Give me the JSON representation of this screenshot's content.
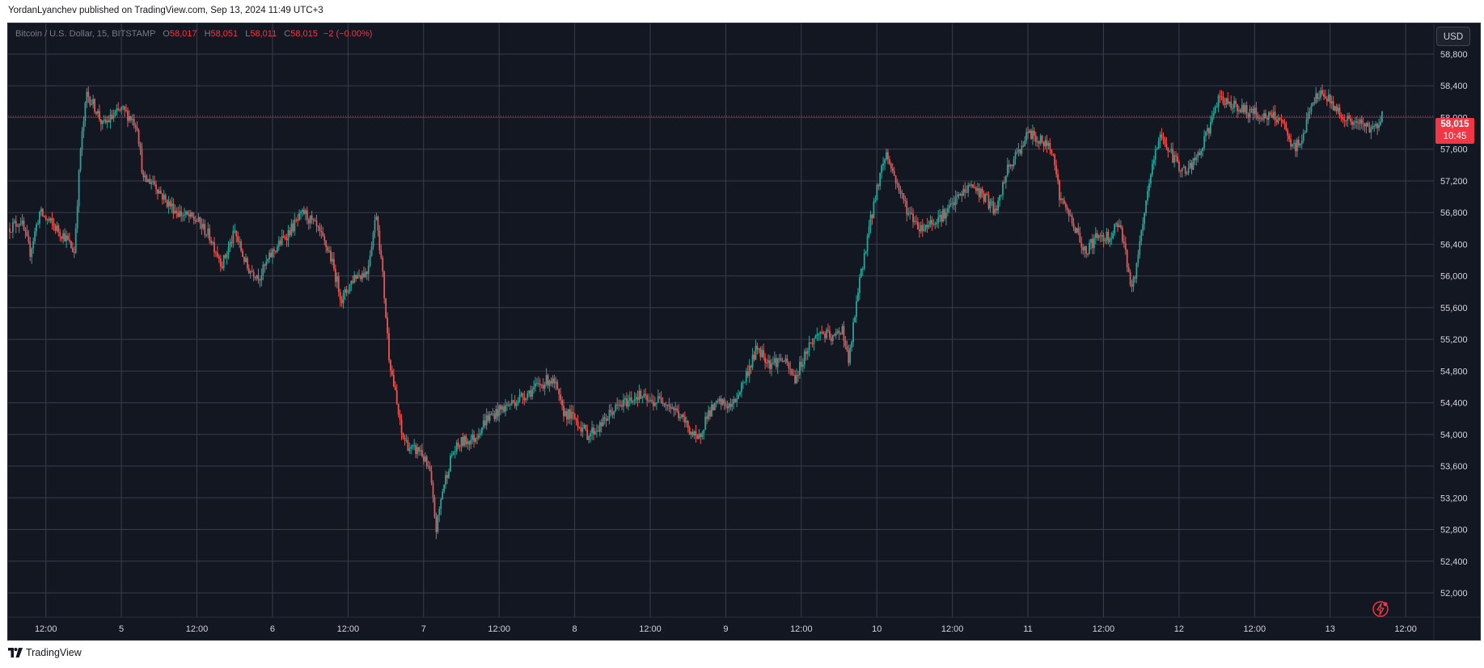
{
  "header": {
    "text": "YordanLyanchev published on TradingView.com, Sep 13, 2024 11:49 UTC+3"
  },
  "legend": {
    "symbol": "Bitcoin / U.S. Dollar, 15, BITSTAMP",
    "o_label": "O",
    "o_value": "58,017",
    "h_label": "H",
    "h_value": "58,051",
    "l_label": "L",
    "l_value": "58,011",
    "c_label": "C",
    "c_value": "58,015",
    "change": "−2 (−0.00%)"
  },
  "currency_button": "USD",
  "last_price": {
    "price": "58,015",
    "countdown": "10:45",
    "value": 58015
  },
  "footer": {
    "brand": "TradingView"
  },
  "colors": {
    "background": "#131722",
    "grid": "#3a3e4a",
    "up": "#26a69a",
    "down": "#ef5350",
    "price_line": "#f23645",
    "text": "#d1d4dc"
  },
  "chart_data": {
    "type": "candlestick",
    "ylim": [
      51900,
      59100
    ],
    "y_ticks": [
      52000,
      52400,
      52800,
      53200,
      53600,
      54000,
      54400,
      54800,
      55200,
      55600,
      56000,
      56400,
      56800,
      57200,
      57600,
      58000,
      58400,
      58800
    ],
    "y_tick_labels": [
      "52,000",
      "52,400",
      "52,800",
      "53,200",
      "53,600",
      "54,000",
      "54,400",
      "54,800",
      "55,200",
      "55,600",
      "56,000",
      "56,400",
      "56,800",
      "57,200",
      "57,600",
      "58,000",
      "58,400",
      "58,800"
    ],
    "x_range_hours": [
      0,
      218
    ],
    "x_ticks": [
      {
        "hour": 6,
        "label": "12:00"
      },
      {
        "hour": 18,
        "label": "5"
      },
      {
        "hour": 30,
        "label": "12:00"
      },
      {
        "hour": 42,
        "label": "6"
      },
      {
        "hour": 54,
        "label": "12:00"
      },
      {
        "hour": 66,
        "label": "7"
      },
      {
        "hour": 78,
        "label": "12:00"
      },
      {
        "hour": 90,
        "label": "8"
      },
      {
        "hour": 102,
        "label": "12:00"
      },
      {
        "hour": 114,
        "label": "9"
      },
      {
        "hour": 126,
        "label": "12:00"
      },
      {
        "hour": 138,
        "label": "10"
      },
      {
        "hour": 150,
        "label": "12:00"
      },
      {
        "hour": 162,
        "label": "11"
      },
      {
        "hour": 174,
        "label": "12:00"
      },
      {
        "hour": 186,
        "label": "12"
      },
      {
        "hour": 198,
        "label": "12:00"
      },
      {
        "hour": 210,
        "label": "13"
      },
      {
        "hour": 222,
        "label": "12:00"
      }
    ],
    "interval_minutes": 15,
    "path": [
      [
        0,
        56600
      ],
      [
        2,
        56700
      ],
      [
        3.5,
        56300
      ],
      [
        5,
        56800
      ],
      [
        9,
        56500
      ],
      [
        10.5,
        56300
      ],
      [
        11.5,
        57600
      ],
      [
        12.5,
        58300
      ],
      [
        14,
        58100
      ],
      [
        15,
        57900
      ],
      [
        18,
        58100
      ],
      [
        19.5,
        58000
      ],
      [
        20.5,
        57900
      ],
      [
        21.5,
        57200
      ],
      [
        23,
        57200
      ],
      [
        25,
        56950
      ],
      [
        27,
        56800
      ],
      [
        30,
        56700
      ],
      [
        32,
        56500
      ],
      [
        34,
        56150
      ],
      [
        36,
        56550
      ],
      [
        38,
        56100
      ],
      [
        40,
        56000
      ],
      [
        42,
        56300
      ],
      [
        44,
        56500
      ],
      [
        47,
        56800
      ],
      [
        49,
        56600
      ],
      [
        51,
        56300
      ],
      [
        53,
        55700
      ],
      [
        55,
        56000
      ],
      [
        57,
        56050
      ],
      [
        58.5,
        56800
      ],
      [
        59.5,
        56000
      ],
      [
        60.5,
        55000
      ],
      [
        61.5,
        54500
      ],
      [
        62.5,
        54000
      ],
      [
        64,
        53800
      ],
      [
        65.5,
        53800
      ],
      [
        67,
        53500
      ],
      [
        68,
        52800
      ],
      [
        69,
        53300
      ],
      [
        70.5,
        53750
      ],
      [
        72,
        53900
      ],
      [
        74,
        53950
      ],
      [
        76,
        54200
      ],
      [
        78,
        54300
      ],
      [
        80,
        54400
      ],
      [
        82,
        54500
      ],
      [
        84,
        54600
      ],
      [
        86,
        54700
      ],
      [
        87,
        54600
      ],
      [
        88,
        54300
      ],
      [
        90,
        54200
      ],
      [
        92,
        54000
      ],
      [
        94,
        54100
      ],
      [
        96,
        54300
      ],
      [
        98,
        54400
      ],
      [
        100,
        54500
      ],
      [
        102,
        54400
      ],
      [
        104,
        54450
      ],
      [
        106,
        54300
      ],
      [
        108,
        54100
      ],
      [
        109.5,
        53900
      ],
      [
        111,
        54250
      ],
      [
        113,
        54400
      ],
      [
        115,
        54350
      ],
      [
        117,
        54700
      ],
      [
        119,
        55100
      ],
      [
        121,
        54900
      ],
      [
        123,
        54950
      ],
      [
        125,
        54700
      ],
      [
        127,
        55100
      ],
      [
        129,
        55300
      ],
      [
        131,
        55200
      ],
      [
        132.5,
        55350
      ],
      [
        133.5,
        54900
      ],
      [
        135,
        55800
      ],
      [
        136.5,
        56500
      ],
      [
        138.5,
        57300
      ],
      [
        139.5,
        57550
      ],
      [
        141,
        57200
      ],
      [
        143,
        56800
      ],
      [
        145,
        56600
      ],
      [
        147,
        56700
      ],
      [
        149,
        56800
      ],
      [
        151,
        57000
      ],
      [
        153,
        57150
      ],
      [
        155,
        57000
      ],
      [
        157,
        56800
      ],
      [
        158.5,
        57300
      ],
      [
        160,
        57500
      ],
      [
        162,
        57800
      ],
      [
        164,
        57700
      ],
      [
        166,
        57600
      ],
      [
        167,
        57000
      ],
      [
        169,
        56700
      ],
      [
        171,
        56300
      ],
      [
        173,
        56500
      ],
      [
        175,
        56500
      ],
      [
        176.5,
        56700
      ],
      [
        177.5,
        56300
      ],
      [
        178.5,
        55800
      ],
      [
        180,
        56500
      ],
      [
        181.5,
        57300
      ],
      [
        183,
        57800
      ],
      [
        185,
        57500
      ],
      [
        187,
        57300
      ],
      [
        189,
        57500
      ],
      [
        190.5,
        57800
      ],
      [
        192,
        58200
      ],
      [
        194,
        58200
      ],
      [
        196,
        58100
      ],
      [
        198,
        58050
      ],
      [
        200,
        58000
      ],
      [
        202,
        58000
      ],
      [
        203,
        57800
      ],
      [
        204,
        57600
      ],
      [
        205.5,
        57700
      ],
      [
        207,
        58200
      ],
      [
        209,
        58300
      ],
      [
        211,
        58100
      ],
      [
        213,
        57950
      ],
      [
        215,
        57900
      ],
      [
        217,
        57850
      ],
      [
        218,
        58015
      ]
    ]
  }
}
